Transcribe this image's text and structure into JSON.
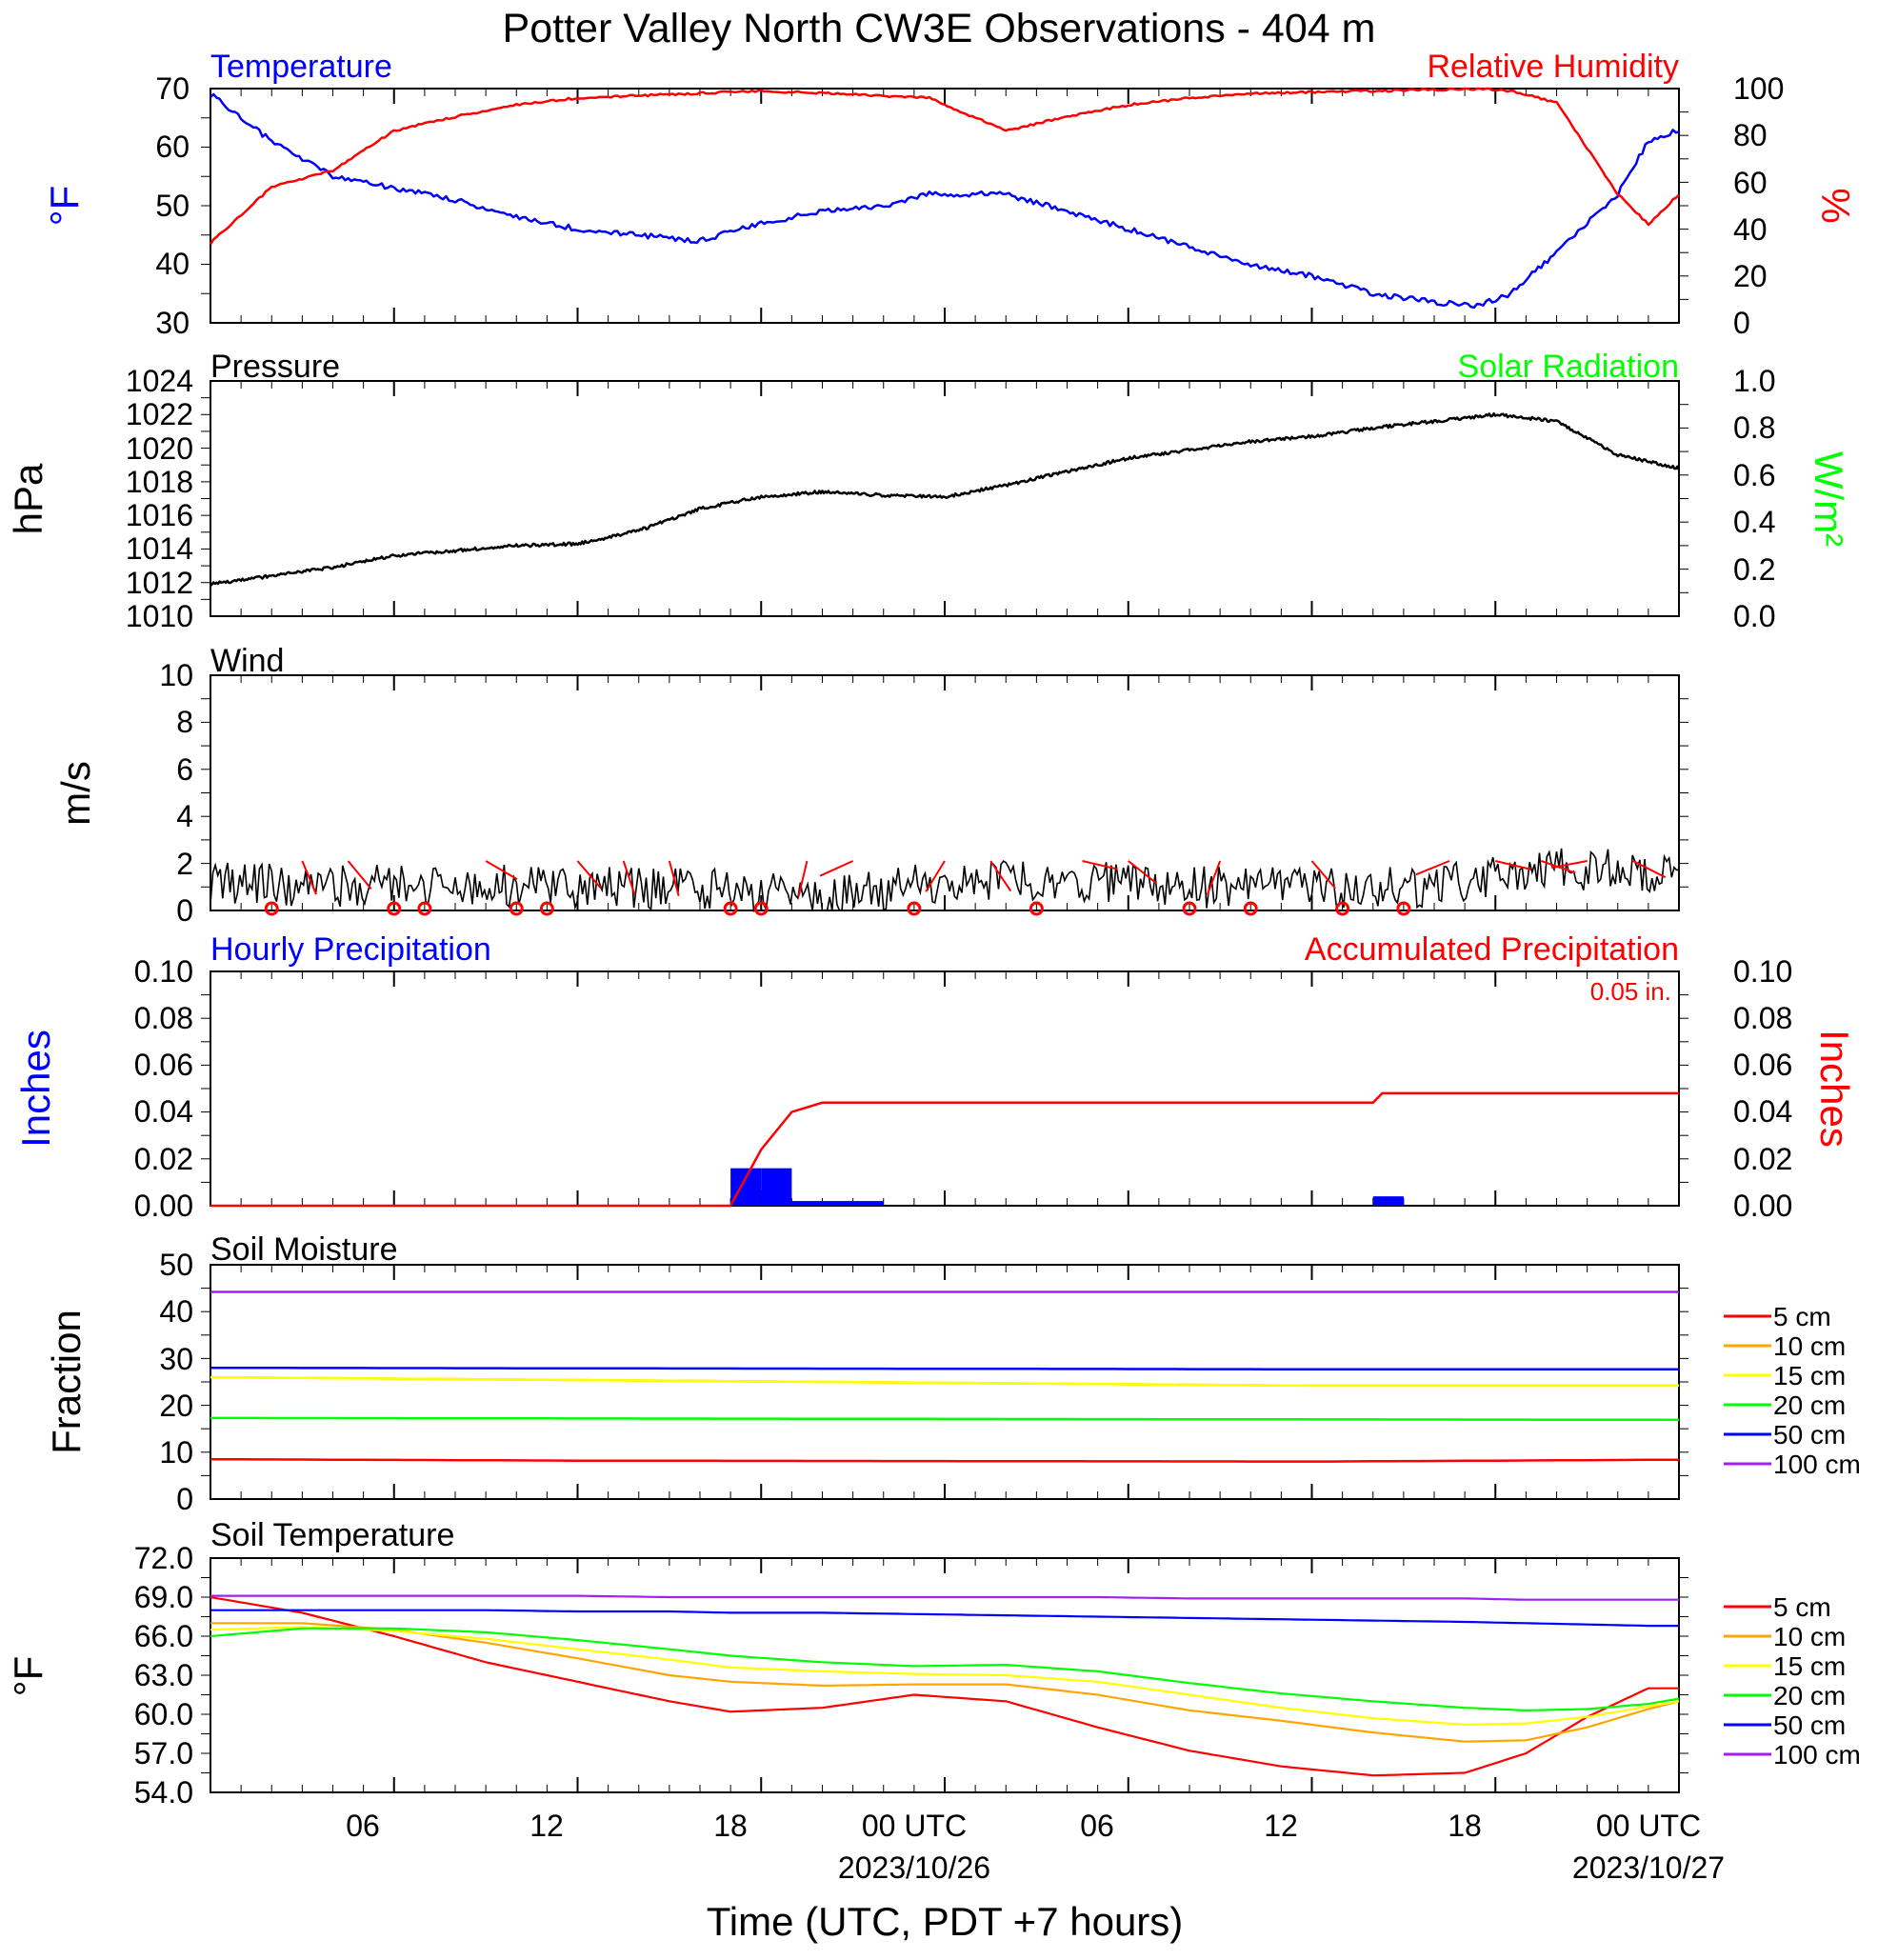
{
  "title": "Potter Valley North CW3E Observations - 404 m",
  "x_axis": {
    "label": "Time (UTC, PDT +7 hours)",
    "ticks": [
      "06",
      "12",
      "18",
      "00 UTC",
      "06",
      "12",
      "18",
      "00 UTC"
    ],
    "dates": [
      "2023/10/26",
      "2023/10/27"
    ]
  },
  "colors": {
    "blue": "#0000ff",
    "red": "#ff0000",
    "green": "#00ff00",
    "black": "#000000",
    "orange": "#ffa500",
    "yellow": "#ffff00",
    "purple": "#a020f0"
  },
  "panels": {
    "temp": {
      "title_left": "Temperature",
      "title_right": "Relative Humidity",
      "ylabel_left": "°F",
      "ylabel_right": "%",
      "yticks_left": [
        "70",
        "60",
        "50",
        "40",
        "30"
      ],
      "yticks_right": [
        "100",
        "80",
        "60",
        "40",
        "20",
        "0"
      ]
    },
    "pressure": {
      "title_left": "Pressure",
      "title_right": "Solar Radiation",
      "ylabel_left": "hPa",
      "ylabel_right": "W/m²",
      "yticks_left": [
        "1024",
        "1022",
        "1020",
        "1018",
        "1016",
        "1014",
        "1012",
        "1010"
      ],
      "yticks_right": [
        "1.0",
        "0.8",
        "0.6",
        "0.4",
        "0.2",
        "0.0"
      ]
    },
    "wind": {
      "title_left": "Wind",
      "ylabel_left": "m/s",
      "yticks_left": [
        "10",
        "8",
        "6",
        "4",
        "2",
        "0"
      ]
    },
    "precip": {
      "title_left": "Hourly Precipitation",
      "title_right": "Accumulated Precipitation",
      "total": "0.05 in.",
      "ylabel_left": "Inches",
      "ylabel_right": "Inches",
      "yticks_left": [
        "0.10",
        "0.08",
        "0.06",
        "0.04",
        "0.02",
        "0.00"
      ],
      "yticks_right": [
        "0.10",
        "0.08",
        "0.06",
        "0.04",
        "0.02",
        "0.00"
      ]
    },
    "soilm": {
      "title_left": "Soil Moisture",
      "ylabel_left": "Fraction",
      "yticks_left": [
        "50",
        "40",
        "30",
        "20",
        "10",
        "0"
      ],
      "legend": [
        "5 cm",
        "10 cm",
        "15 cm",
        "20 cm",
        "50 cm",
        "100 cm"
      ]
    },
    "soilt": {
      "title_left": "Soil Temperature",
      "ylabel_left": "°F",
      "yticks_left": [
        "72.0",
        "69.0",
        "66.0",
        "63.0",
        "60.0",
        "57.0",
        "54.0"
      ],
      "legend": [
        "5 cm",
        "10 cm",
        "15 cm",
        "20 cm",
        "50 cm",
        "100 cm"
      ]
    }
  },
  "chart_data": [
    {
      "type": "line",
      "title": "Temperature",
      "x_hours_since_start": [
        0,
        2,
        4,
        6,
        8,
        10,
        12,
        14,
        16,
        18,
        20,
        22,
        23.5,
        26,
        28,
        30,
        32,
        34,
        36,
        38,
        40,
        41.5,
        42.5,
        44,
        46,
        47,
        48
      ],
      "series": [
        {
          "name": "Temperature",
          "color": "#0000ff",
          "axis": "left",
          "ylim": [
            30,
            70
          ],
          "values": [
            69,
            61,
            55,
            53,
            51,
            48,
            46,
            45,
            44,
            47,
            49,
            50,
            52,
            52,
            49,
            46,
            43,
            40,
            38,
            35,
            33.5,
            33,
            35,
            42,
            52,
            61,
            63
          ]
        },
        {
          "name": "Relative Humidity",
          "color": "#ff0000",
          "axis": "right",
          "ylim": [
            0,
            100
          ],
          "values": [
            34,
            58,
            65,
            82,
            88,
            93,
            96,
            97,
            98,
            99,
            98,
            97,
            96,
            82,
            88,
            93,
            96,
            98,
            98.5,
            99,
            99.5,
            100,
            99,
            94,
            55,
            42,
            55
          ]
        }
      ]
    },
    {
      "type": "line",
      "title": "Pressure",
      "x_hours_since_start": [
        0,
        4,
        6,
        8,
        10,
        12,
        14,
        16,
        18,
        20,
        22,
        24,
        26,
        28,
        30,
        32,
        34,
        36,
        38,
        40,
        42,
        44,
        46,
        48
      ],
      "series": [
        {
          "name": "Pressure",
          "color": "#000000",
          "axis": "left",
          "ylim": [
            1010,
            1024
          ],
          "values": [
            1011.9,
            1012.9,
            1013.6,
            1013.9,
            1014.2,
            1014.3,
            1015.1,
            1016.4,
            1017.1,
            1017.4,
            1017.2,
            1017.1,
            1017.8,
            1018.6,
            1019.4,
            1019.9,
            1020.4,
            1020.7,
            1021.2,
            1021.6,
            1022.0,
            1021.6,
            1019.6,
            1018.8
          ]
        }
      ]
    },
    {
      "type": "line",
      "title": "Wind",
      "x_hours_since_start": [
        0,
        4,
        8,
        12,
        16,
        20,
        24,
        28,
        32,
        36,
        40,
        44,
        48
      ],
      "series": [
        {
          "name": "Wind",
          "color": "#000000",
          "ylim": [
            0,
            10
          ],
          "values": [
            1.2,
            1.0,
            1.1,
            1.0,
            0.9,
            0.6,
            1.2,
            1.3,
            1.0,
            0.9,
            1.0,
            1.8,
            1.6
          ]
        }
      ]
    },
    {
      "type": "bar",
      "title": "Hourly Precipitation",
      "x_hours_since_start": [
        17,
        18,
        19,
        20,
        21,
        38
      ],
      "values": [
        0.016,
        0.016,
        0.002,
        0.002,
        0.002,
        0.004
      ],
      "ylim": [
        0,
        0.1
      ],
      "series": [
        {
          "name": "Accumulated Precipitation",
          "color": "#ff0000",
          "ylim": [
            0,
            0.1
          ],
          "x_hours_since_start": [
            0,
            17,
            18,
            19,
            20,
            38,
            38.3,
            48
          ],
          "values": [
            0,
            0,
            0.024,
            0.04,
            0.044,
            0.044,
            0.048,
            0.048
          ]
        }
      ]
    },
    {
      "type": "line",
      "title": "Soil Moisture",
      "x_hours_since_start": [
        0,
        12,
        24,
        36,
        48
      ],
      "ylim": [
        0,
        50
      ],
      "series": [
        {
          "name": "5 cm",
          "color": "#ff0000",
          "values": [
            8.5,
            8.2,
            8.1,
            8.0,
            8.4
          ]
        },
        {
          "name": "10 cm",
          "color": "#ffa500",
          "values": [
            26,
            25.4,
            24.8,
            24.2,
            24.2
          ]
        },
        {
          "name": "15 cm",
          "color": "#ffff00",
          "values": [
            26,
            25.4,
            24.8,
            24.2,
            24.2
          ]
        },
        {
          "name": "20 cm",
          "color": "#00ff00",
          "values": [
            17.3,
            17.2,
            17.1,
            17.0,
            16.9
          ]
        },
        {
          "name": "50 cm",
          "color": "#0000ff",
          "values": [
            28,
            27.9,
            27.8,
            27.7,
            27.7
          ]
        },
        {
          "name": "100 cm",
          "color": "#a020f0",
          "values": [
            44.2,
            44.2,
            44.2,
            44.2,
            44.2
          ]
        }
      ]
    },
    {
      "type": "line",
      "title": "Soil Temperature",
      "x_hours_since_start": [
        0,
        3,
        6,
        9,
        12,
        15,
        17,
        20,
        23,
        26,
        29,
        32,
        35,
        38,
        41,
        43,
        45,
        47,
        48
      ],
      "ylim": [
        54,
        72
      ],
      "series": [
        {
          "name": "5 cm",
          "color": "#ff0000",
          "values": [
            69.0,
            67.8,
            66.0,
            64.0,
            62.5,
            61.0,
            60.2,
            60.5,
            61.5,
            61.0,
            59.0,
            57.2,
            56.0,
            55.3,
            55.5,
            57.0,
            59.8,
            62.0,
            62.0
          ]
        },
        {
          "name": "10 cm",
          "color": "#ffa500",
          "values": [
            67.0,
            67.0,
            66.5,
            65.5,
            64.3,
            63.0,
            62.5,
            62.2,
            62.3,
            62.3,
            61.5,
            60.3,
            59.5,
            58.6,
            57.9,
            58.0,
            59.0,
            60.4,
            61.0
          ]
        },
        {
          "name": "15 cm",
          "color": "#ffff00",
          "values": [
            66.5,
            66.7,
            66.4,
            65.8,
            65.0,
            64.2,
            63.6,
            63.3,
            63.1,
            63.0,
            62.5,
            61.5,
            60.5,
            59.7,
            59.2,
            59.3,
            59.8,
            60.6,
            61.0
          ]
        },
        {
          "name": "20 cm",
          "color": "#00ff00",
          "values": [
            66.0,
            66.6,
            66.6,
            66.3,
            65.7,
            65.0,
            64.5,
            64.0,
            63.7,
            63.8,
            63.3,
            62.4,
            61.6,
            61.0,
            60.5,
            60.3,
            60.4,
            60.8,
            61.2
          ]
        },
        {
          "name": "50 cm",
          "color": "#0000ff",
          "values": [
            68.0,
            68.0,
            68.0,
            68.0,
            67.9,
            67.9,
            67.8,
            67.8,
            67.7,
            67.6,
            67.5,
            67.4,
            67.3,
            67.2,
            67.1,
            67.0,
            66.9,
            66.8,
            66.8
          ]
        },
        {
          "name": "100 cm",
          "color": "#a020f0",
          "values": [
            69.1,
            69.1,
            69.1,
            69.1,
            69.1,
            69.0,
            69.0,
            69.0,
            69.0,
            69.0,
            69.0,
            68.9,
            68.9,
            68.9,
            68.9,
            68.8,
            68.8,
            68.8,
            68.8
          ]
        }
      ]
    }
  ]
}
